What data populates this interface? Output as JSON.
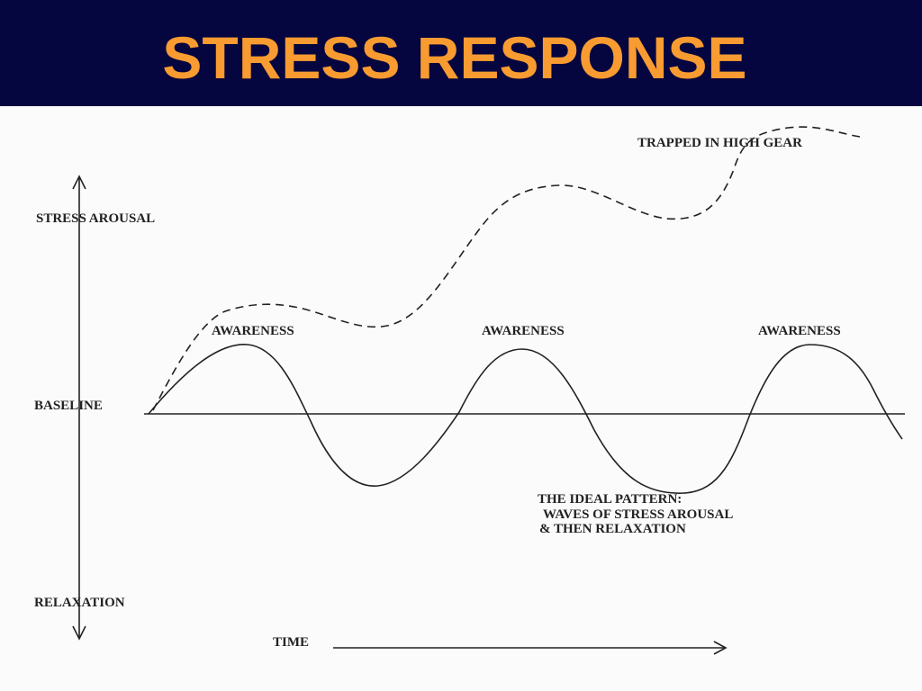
{
  "header": {
    "title": "STRESS RESPONSE"
  },
  "diagram": {
    "axis_labels": {
      "top": "STRESS AROUSAL",
      "baseline": "BASELINE",
      "bottom": "RELAXATION",
      "time": "TIME"
    },
    "annotations": {
      "trapped": "TRAPPED IN HIGH GEAR",
      "awareness": [
        "AWARENESS",
        "AWARENESS",
        "AWARENESS"
      ],
      "ideal_pattern": [
        "THE IDEAL PATTERN:",
        "WAVES OF STRESS AROUSAL",
        "& THEN RELAXATION"
      ]
    }
  }
}
